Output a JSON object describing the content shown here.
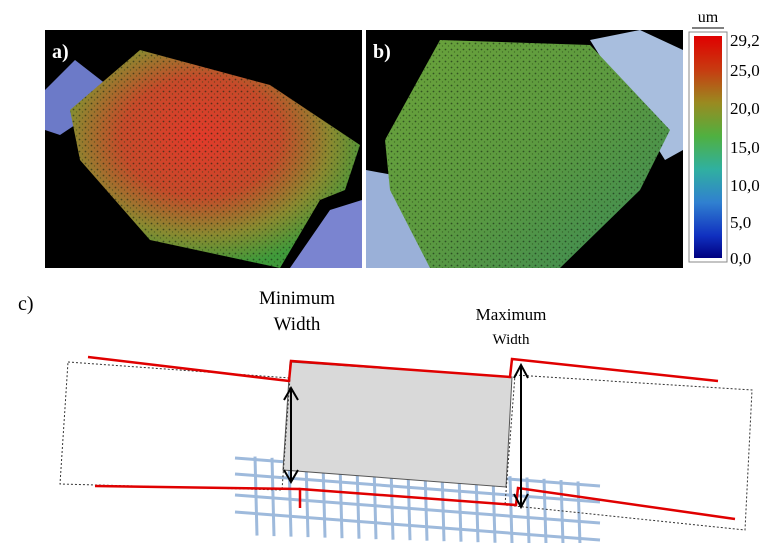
{
  "panels": {
    "a": {
      "label": "a)"
    },
    "b": {
      "label": "b)"
    },
    "c": {
      "label": "c)"
    }
  },
  "colorbar": {
    "unit": "um",
    "ticks": [
      "29,2",
      "25,0",
      "20,0",
      "15,0",
      "10,0",
      "5,0",
      "0,0"
    ]
  },
  "diagram": {
    "minimum_width": [
      "Minimum",
      "Width"
    ],
    "maximum_width": [
      "Maximum",
      "Width"
    ]
  }
}
